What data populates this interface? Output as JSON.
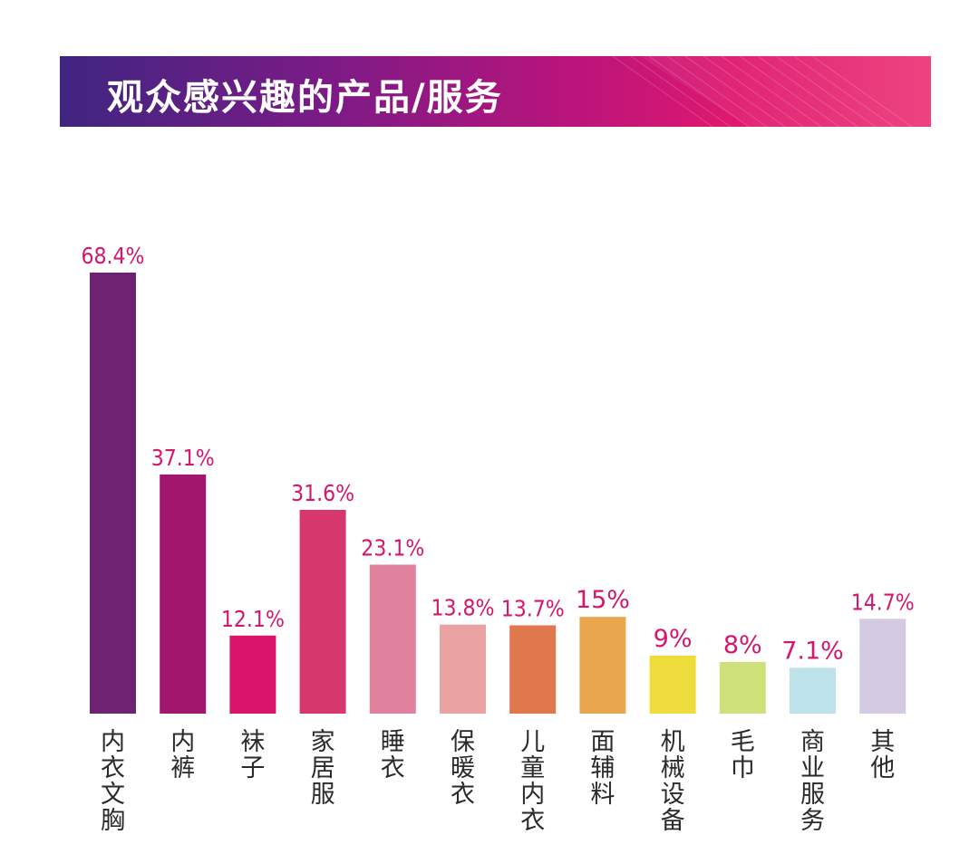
{
  "header": {
    "title": "观众感兴趣的产品/服务"
  },
  "chart_data": {
    "type": "bar",
    "title": "观众感兴趣的产品/服务",
    "xlabel": "",
    "ylabel": "",
    "ylim": [
      0,
      70
    ],
    "grid": false,
    "legend": "none",
    "categories": [
      "内衣文胸",
      "内裤",
      "袜子",
      "家居服",
      "睡衣",
      "保暖衣",
      "儿童内衣",
      "面辅料",
      "机械设备",
      "毛巾",
      "商业服务",
      "其他"
    ],
    "values": [
      68.4,
      37.1,
      12.1,
      31.6,
      23.1,
      13.8,
      13.7,
      15,
      9,
      8,
      7.1,
      14.7
    ],
    "value_labels": [
      "68.4%",
      "37.1%",
      "12.1%",
      "31.6%",
      "23.1%",
      "13.8%",
      "13.7%",
      "15%",
      "9%",
      "8%",
      "7.1%",
      "14.7%"
    ],
    "colors": [
      "#6f2272",
      "#a3166d",
      "#d8146c",
      "#d6386e",
      "#e0819e",
      "#eaa2a2",
      "#e0774d",
      "#eaa64f",
      "#eddc3c",
      "#cde07a",
      "#bde2ea",
      "#d4cae3"
    ],
    "value_label_color": "#d5166d",
    "category_label_color": "#2a2a2a",
    "banner_colors": [
      "#3f2580",
      "#7a1b86",
      "#b8147c",
      "#e0186e",
      "#ec3878"
    ]
  }
}
